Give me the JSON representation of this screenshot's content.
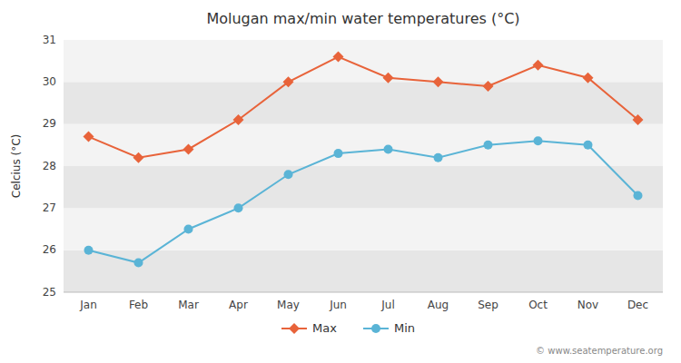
{
  "chart_data": {
    "type": "line",
    "title": "Molugan max/min water temperatures (°C)",
    "ylabel": "Celcius (°C)",
    "categories": [
      "Jan",
      "Feb",
      "Mar",
      "Apr",
      "May",
      "Jun",
      "Jul",
      "Aug",
      "Sep",
      "Oct",
      "Nov",
      "Dec"
    ],
    "series": [
      {
        "name": "Max",
        "color": "#e8633a",
        "marker": "diamond",
        "values": [
          28.7,
          28.2,
          28.4,
          29.1,
          30.0,
          30.6,
          30.1,
          30.0,
          29.9,
          30.4,
          30.1,
          29.1
        ]
      },
      {
        "name": "Min",
        "color": "#5ab4d6",
        "marker": "circle",
        "values": [
          26.0,
          25.7,
          26.5,
          27.0,
          27.8,
          28.3,
          28.4,
          28.2,
          28.5,
          28.6,
          28.5,
          27.3
        ]
      }
    ],
    "ylim": [
      25,
      31
    ],
    "yticks": [
      25,
      26,
      27,
      28,
      29,
      30,
      31
    ],
    "grid": true,
    "legend": "bottom",
    "annotations": [
      "© www.seatemperature.org"
    ]
  }
}
